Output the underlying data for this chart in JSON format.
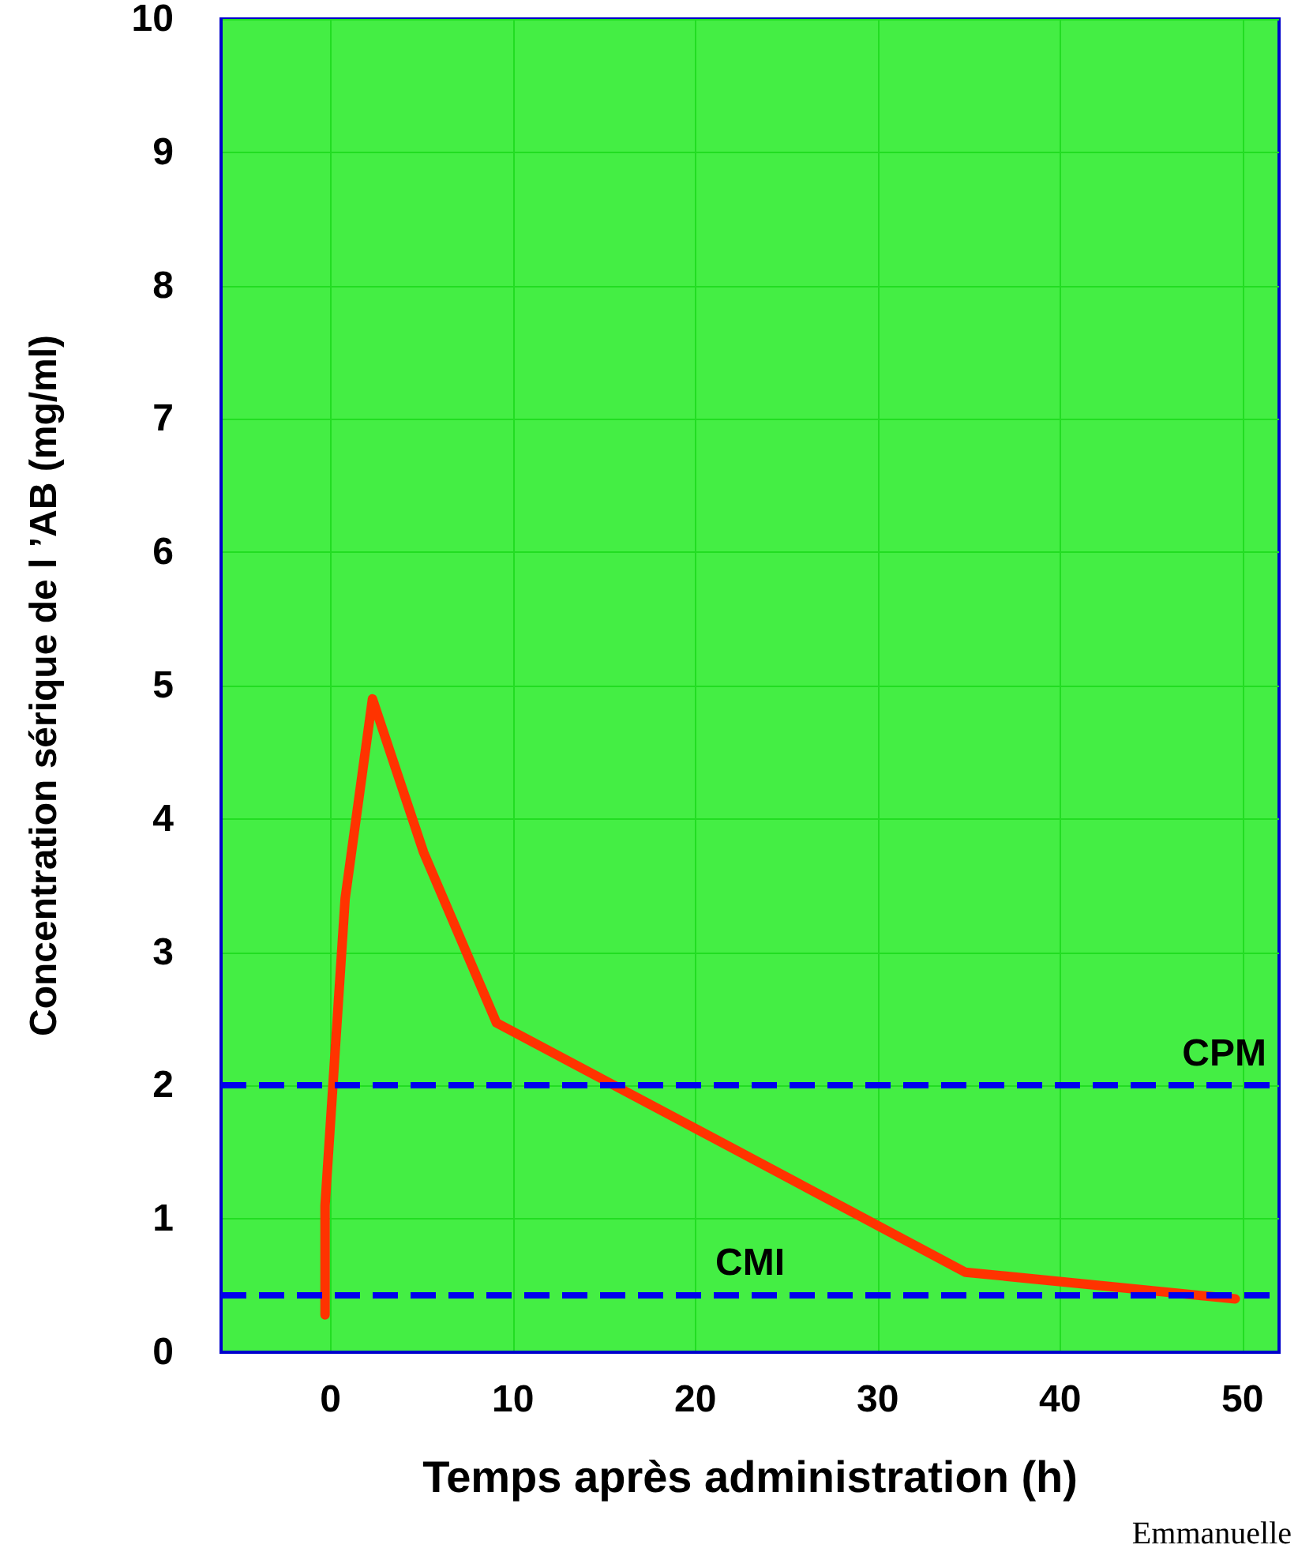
{
  "chart_data": {
    "type": "line",
    "xlabel": "Temps après administration (h)",
    "ylabel": "Concentration sérique de l ’AB (mg/ml)",
    "x": [
      -0.3,
      -0.3,
      0.8,
      2.3,
      5.1,
      9.1,
      21.9,
      34.8,
      49.6
    ],
    "series": [
      {
        "color": "#ff3300",
        "values": [
          0.28,
          1.1,
          3.4,
          4.9,
          3.75,
          2.47,
          1.54,
          0.6,
          0.4
        ]
      }
    ],
    "xlim": [
      -6,
      52
    ],
    "xticks": [
      0,
      10,
      20,
      30,
      40,
      50
    ],
    "ylim": [
      0,
      10
    ],
    "yticks": [
      0,
      1,
      2,
      3,
      4,
      5,
      6,
      7,
      8,
      9,
      10
    ],
    "ref_lines": [
      {
        "axis": "y",
        "value": 2,
        "label": "CPM",
        "color": "#0000ee",
        "line_style": "dashed"
      },
      {
        "axis": "y",
        "value": 0.43,
        "label": "CMI",
        "color": "#0000ee",
        "line_style": "dashed"
      }
    ],
    "annotations": [
      "Emmanuelle"
    ],
    "grid": true,
    "marker": "none",
    "line_style": "solid"
  }
}
